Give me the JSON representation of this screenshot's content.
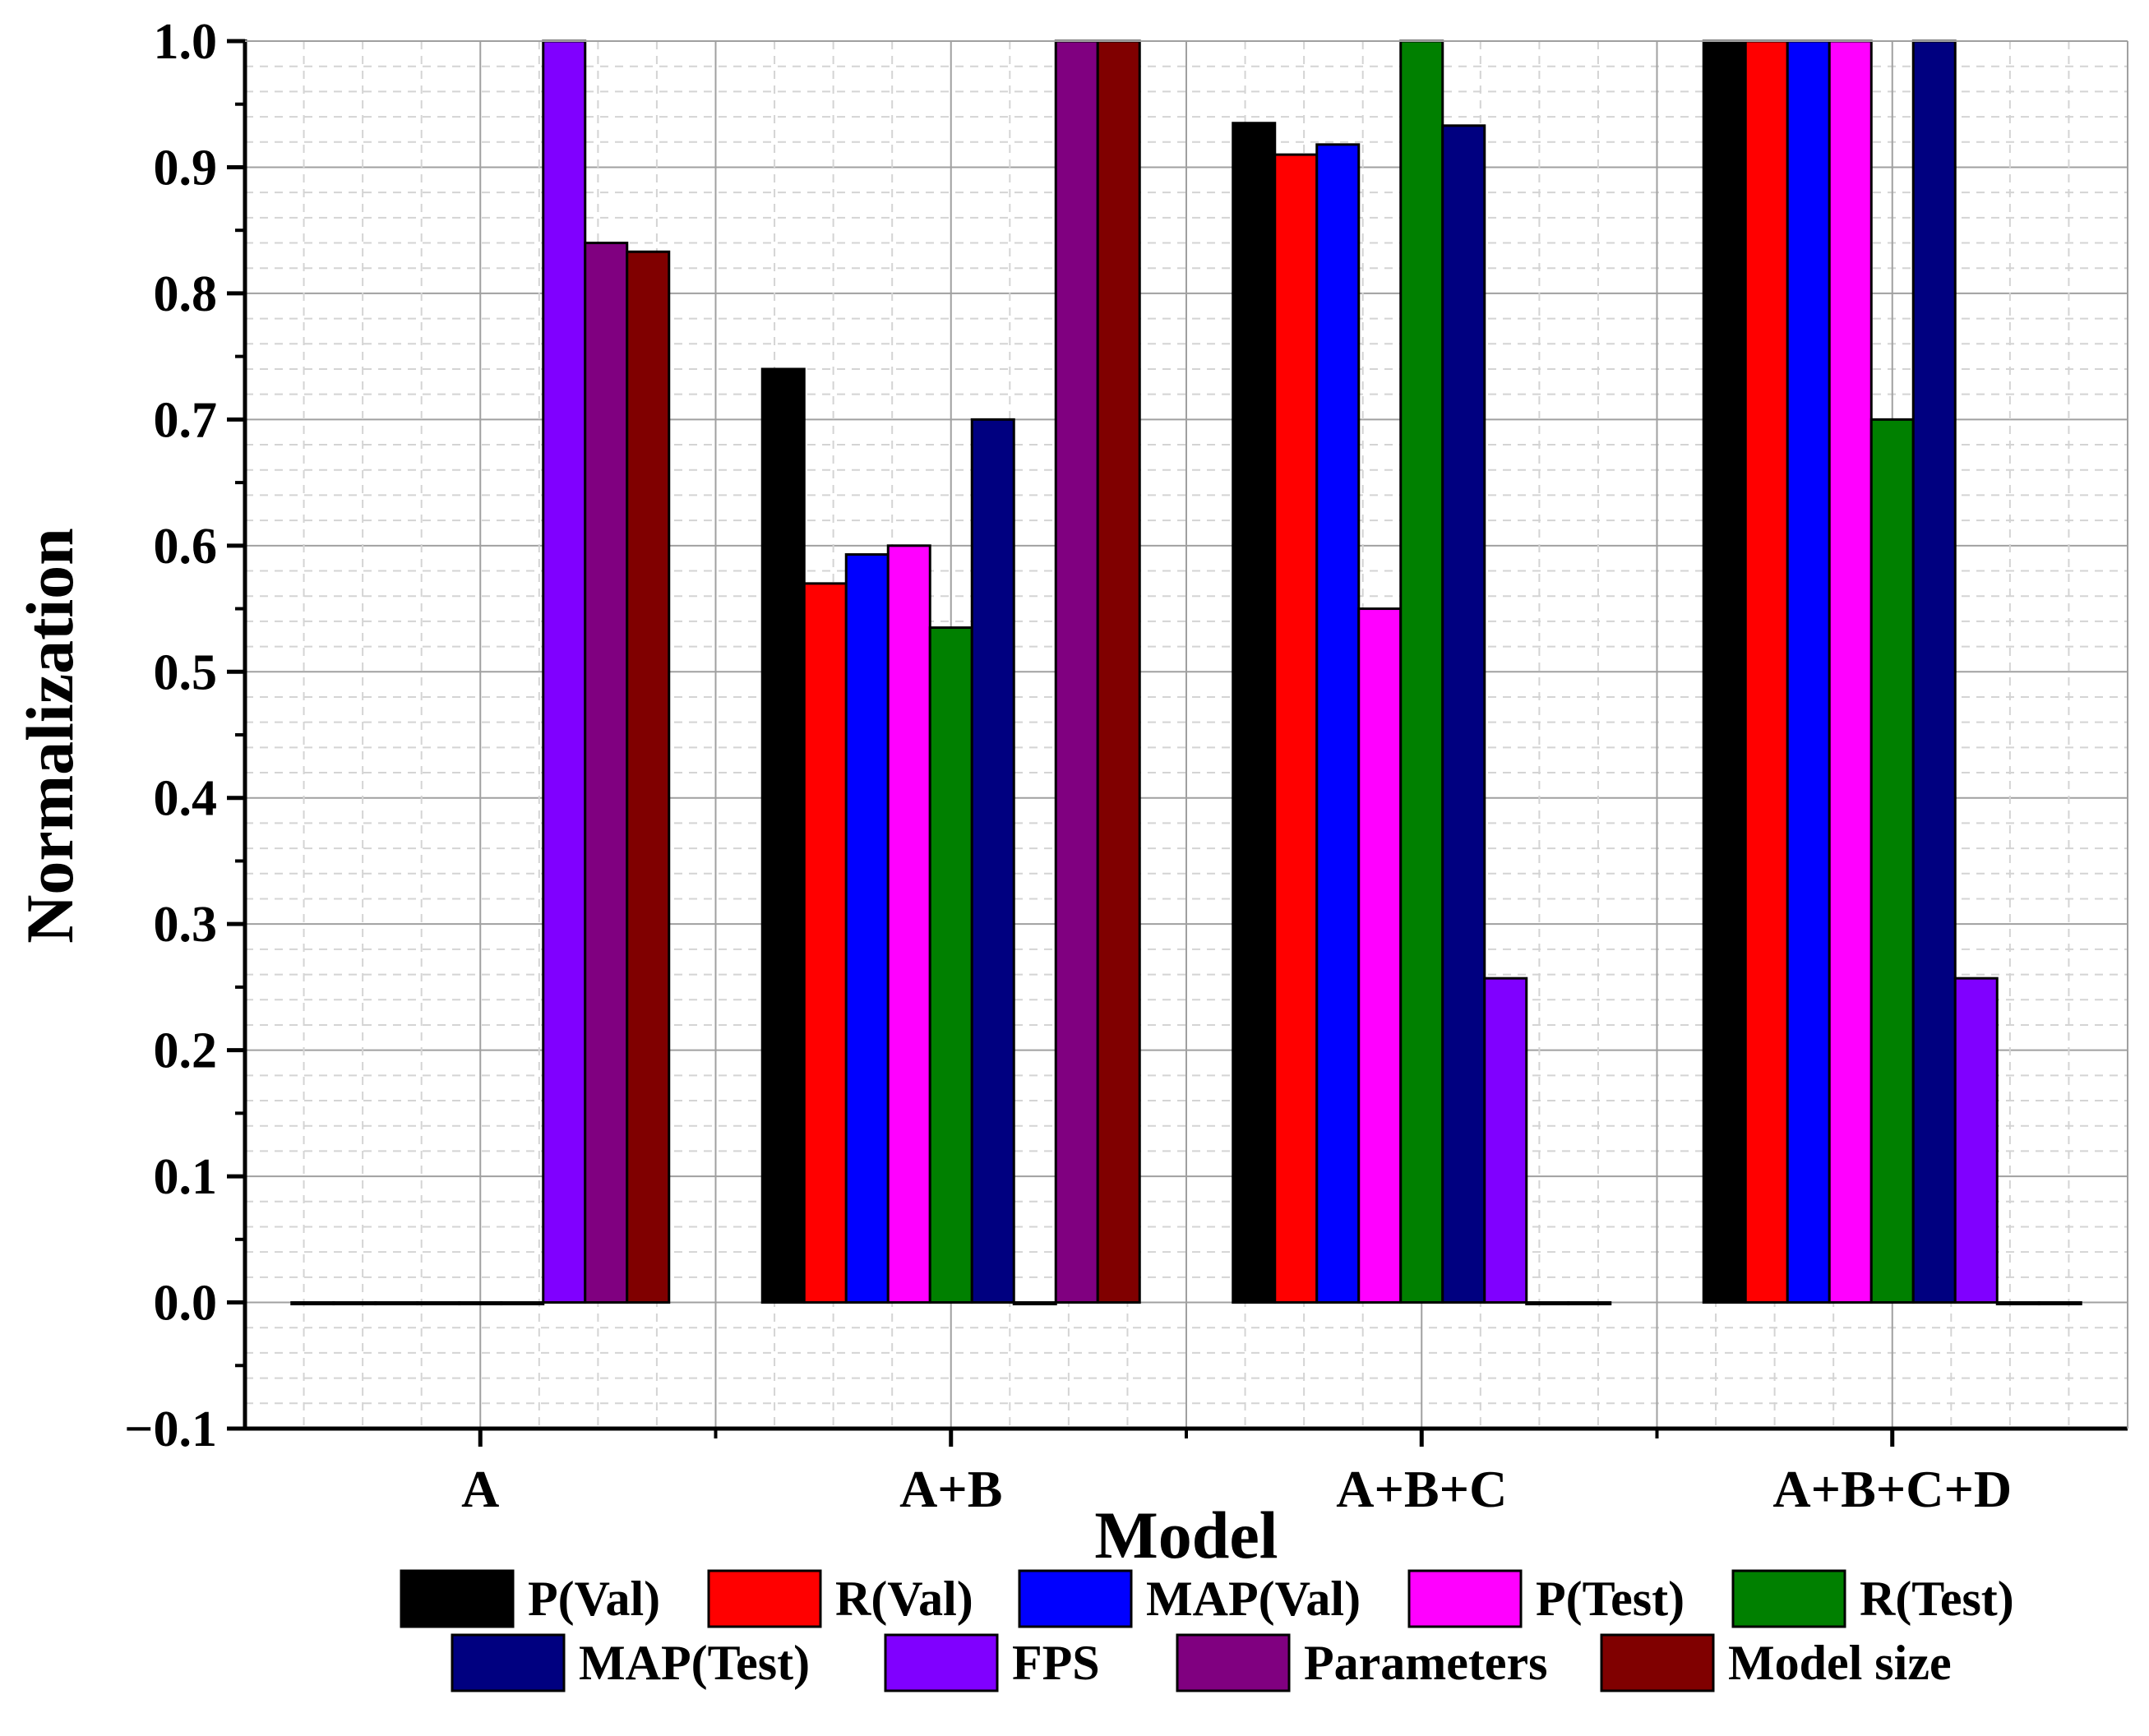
{
  "chart_data": {
    "type": "bar",
    "title": "",
    "xlabel": "Model",
    "ylabel": "Normalization",
    "ylim": [
      -0.1,
      1.0
    ],
    "yticks": [
      -0.1,
      0.0,
      0.1,
      0.2,
      0.3,
      0.4,
      0.5,
      0.6,
      0.7,
      0.8,
      0.9,
      1.0
    ],
    "ytick_labels": [
      "−0.1",
      "0.0",
      "0.1",
      "0.2",
      "0.3",
      "0.4",
      "0.5",
      "0.6",
      "0.7",
      "0.8",
      "0.9",
      "1.0"
    ],
    "grid": true,
    "legend_position": "bottom",
    "categories": [
      "A",
      "A+B",
      "A+B+C",
      "A+B+C+D"
    ],
    "series": [
      {
        "name": "P(Val)",
        "color": "#000000",
        "values": [
          0.0,
          0.74,
          0.935,
          1.0
        ]
      },
      {
        "name": "R(Val)",
        "color": "#ff0000",
        "values": [
          0.0,
          0.57,
          0.91,
          1.0
        ]
      },
      {
        "name": "MAP(Val)",
        "color": "#0000ff",
        "values": [
          0.0,
          0.593,
          0.918,
          1.0
        ]
      },
      {
        "name": "P(Test)",
        "color": "#ff00ff",
        "values": [
          0.0,
          0.6,
          0.55,
          1.0
        ]
      },
      {
        "name": "R(Test)",
        "color": "#008000",
        "values": [
          0.0,
          0.535,
          1.0,
          0.7
        ]
      },
      {
        "name": "MAP(Test)",
        "color": "#000080",
        "values": [
          0.0,
          0.7,
          0.933,
          1.0
        ]
      },
      {
        "name": "FPS",
        "color": "#8000ff",
        "values": [
          1.0,
          0.0,
          0.257,
          0.257
        ]
      },
      {
        "name": "Parameters",
        "color": "#800080",
        "values": [
          0.84,
          1.0,
          0.0,
          0.0
        ]
      },
      {
        "name": "Model size",
        "color": "#800000",
        "values": [
          0.833,
          1.0,
          0.0,
          0.0
        ]
      }
    ]
  }
}
